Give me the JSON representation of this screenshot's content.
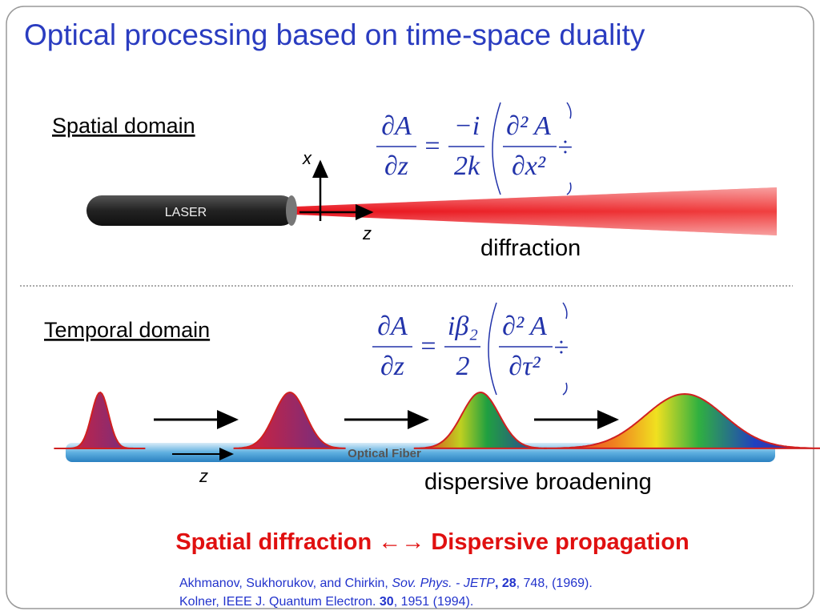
{
  "title": "Optical processing based on time-space duality",
  "spatial": {
    "label": "Spatial domain",
    "laser": "LASER",
    "axis_x": "x",
    "axis_z": "z",
    "caption": "diffraction",
    "equation": {
      "lhs_num": "∂A",
      "lhs_den": "∂z",
      "equals": "=",
      "coef_num": "−i",
      "coef_den": "2k",
      "inner_num": "∂² A",
      "inner_den": "∂x²",
      "tail": "÷"
    }
  },
  "temporal": {
    "label": "Temporal domain",
    "fiber": "Optical Fiber",
    "axis_z": "z",
    "caption": "dispersive broadening",
    "equation": {
      "lhs_num": "∂A",
      "lhs_den": "∂z",
      "equals": "=",
      "coef_num": "iβ₂",
      "coef_den": "2",
      "inner_num": "∂² A",
      "inner_den": "∂τ²",
      "tail": "÷"
    }
  },
  "conclusion": {
    "left": "Spatial diffraction",
    "arrows": "←→",
    "right": "Dispersive propagation"
  },
  "references": [
    [
      "Akhmanov, Sukhorukov, and Chirkin, ",
      "Sov. Phys. - JETP",
      ", 28",
      ", 748, (1969)."
    ],
    [
      "Kolner, IEEE J. Quantum Electron. ",
      "30",
      ", 1951 (1994)."
    ]
  ]
}
